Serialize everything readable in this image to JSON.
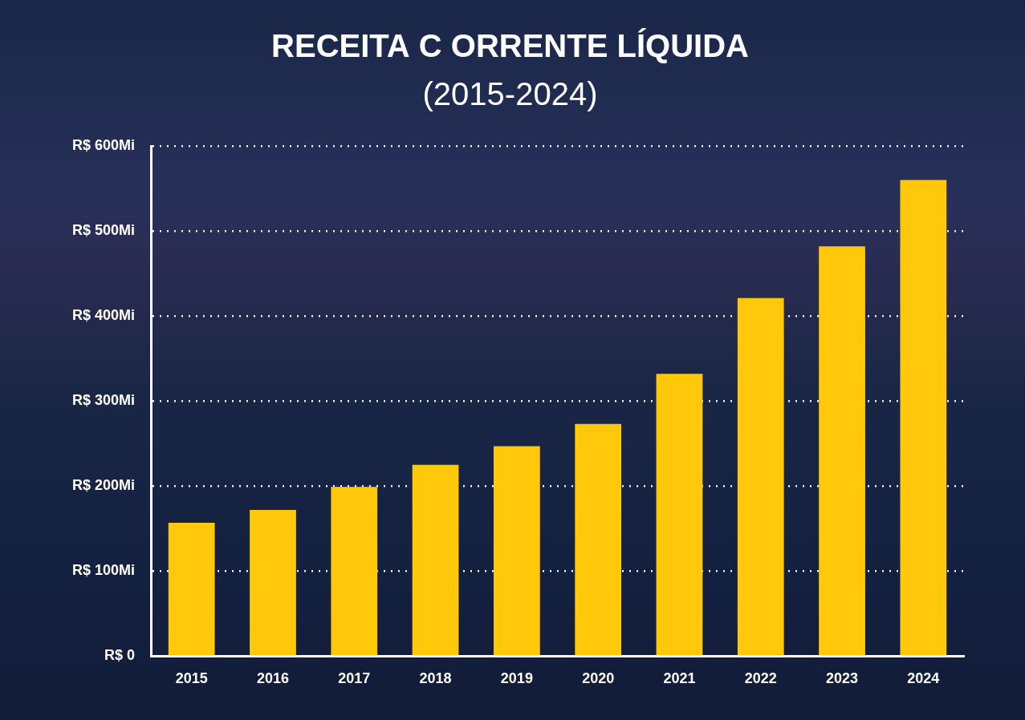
{
  "chart_data": {
    "type": "bar",
    "title": "RECEITA C ORRENTE LÍQUIDA",
    "subtitle": "(2015-2024)",
    "categories": [
      "2015",
      "2016",
      "2017",
      "2018",
      "2019",
      "2020",
      "2021",
      "2022",
      "2023",
      "2024"
    ],
    "values": [
      157,
      172,
      199,
      225,
      247,
      273,
      332,
      421,
      482,
      560
    ],
    "color": "#ffc80a",
    "ylim": [
      0,
      600
    ],
    "yticks": [
      {
        "value": 0,
        "label": "R$ 0"
      },
      {
        "value": 100,
        "label": "R$ 100Mi"
      },
      {
        "value": 200,
        "label": "R$ 200Mi"
      },
      {
        "value": 300,
        "label": "R$ 300Mi"
      },
      {
        "value": 400,
        "label": "R$ 400Mi"
      },
      {
        "value": 500,
        "label": "R$ 500Mi"
      },
      {
        "value": 600,
        "label": "R$ 600Mi"
      }
    ],
    "grid": true
  }
}
